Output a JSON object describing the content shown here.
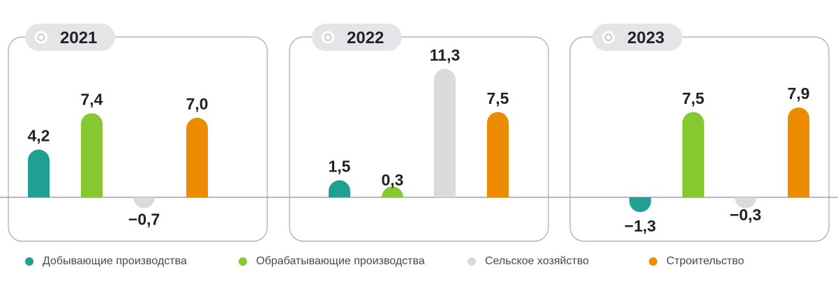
{
  "chart_data": [
    {
      "type": "bar",
      "title": "2021",
      "categories": [
        "Добывающие производства",
        "Обрабатывающие производства",
        "Сельское хозяйство",
        "Строительство"
      ],
      "values": [
        4.2,
        7.4,
        -0.7,
        7.0
      ],
      "labels": [
        "4,2",
        "7,4",
        "−0,7",
        "7,0"
      ]
    },
    {
      "type": "bar",
      "title": "2022",
      "categories": [
        "Добывающие производства",
        "Обрабатывающие производства",
        "Сельское хозяйство",
        "Строительство"
      ],
      "values": [
        1.5,
        0.3,
        11.3,
        7.5
      ],
      "labels": [
        "1,5",
        "0,3",
        "11,3",
        "7,5"
      ]
    },
    {
      "type": "bar",
      "title": "2023",
      "categories": [
        "Добывающие производства",
        "Обрабатывающие производства",
        "Сельское хозяйство",
        "Строительство"
      ],
      "values": [
        -1.3,
        7.5,
        -0.3,
        7.9
      ],
      "labels": [
        "−1,3",
        "7,5",
        "−0,3",
        "7,9"
      ]
    }
  ],
  "legend": [
    {
      "label": "Добывающие производства",
      "color": "#1fa093"
    },
    {
      "label": "Обрабатывающие производства",
      "color": "#86c830"
    },
    {
      "label": "Сельское хозяйство",
      "color": "#d9dadc"
    },
    {
      "label": "Строительство",
      "color": "#ec8b00"
    }
  ]
}
